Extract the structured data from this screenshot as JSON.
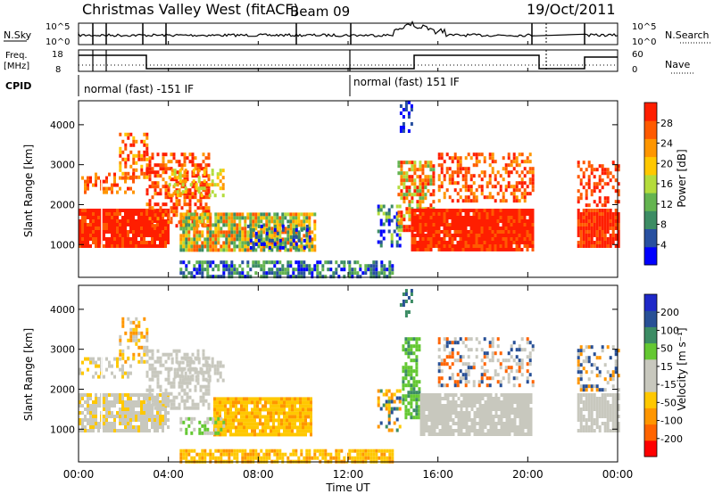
{
  "header": {
    "title": "Christmas Valley West (fitACF)",
    "beam": "Beam 09",
    "date": "19/Oct/2011"
  },
  "top_panels": {
    "nsky_label": "N.Sky",
    "nsky_ticks": [
      "10^5",
      "10^0"
    ],
    "nsearch_label": "N.Search",
    "nsearch_ticks": [
      "10^5",
      "10^0"
    ],
    "freq_label_line1": "Freq.",
    "freq_label_line2": "[MHz]",
    "freq_ticks": [
      "18",
      "8"
    ],
    "nave_label": "Nave",
    "nave_ticks": [
      "60",
      "0"
    ],
    "cpid_label": "CPID",
    "cpid_segments": [
      "normal (fast) -151 IF",
      "normal (fast) 151 IF"
    ]
  },
  "colors": {
    "power_scale": [
      "#0000ff",
      "#2850a0",
      "#3c8c64",
      "#64b450",
      "#b4dc3c",
      "#ffc800",
      "#ff9600",
      "#ff5a00",
      "#ff1e00"
    ],
    "velocity_scale": [
      "#ff0000",
      "#ff6400",
      "#ff9600",
      "#ffc800",
      "#c8c8be",
      "#c8c8be",
      "#64c832",
      "#3c8c64",
      "#285096",
      "#1e28c8"
    ]
  },
  "chart_data": [
    {
      "type": "heatmap",
      "name": "power",
      "ylabel": "Slant Range [km]",
      "xlabel": "",
      "ylim": [
        180,
        4600
      ],
      "y_ticks": [
        "1000",
        "2000",
        "3000",
        "4000"
      ],
      "colorbar_label": "Power [dB]",
      "colorbar_ticks": [
        "4",
        "8",
        "12",
        "16",
        "20",
        "24",
        "28"
      ],
      "grid": false
    },
    {
      "type": "heatmap",
      "name": "velocity",
      "ylabel": "Slant Range [km]",
      "xlabel": "Time UT",
      "ylim": [
        180,
        4600
      ],
      "y_ticks": [
        "1000",
        "2000",
        "3000",
        "4000"
      ],
      "x_ticks": [
        "00:00",
        "04:00",
        "08:00",
        "12:00",
        "16:00",
        "20:00",
        "00:00"
      ],
      "colorbar_label": "Velocity [m s⁻¹]",
      "colorbar_ticks": [
        "-200",
        "-100",
        "-50",
        "-15",
        "15",
        "50",
        "100",
        "200"
      ],
      "grid": false
    }
  ]
}
